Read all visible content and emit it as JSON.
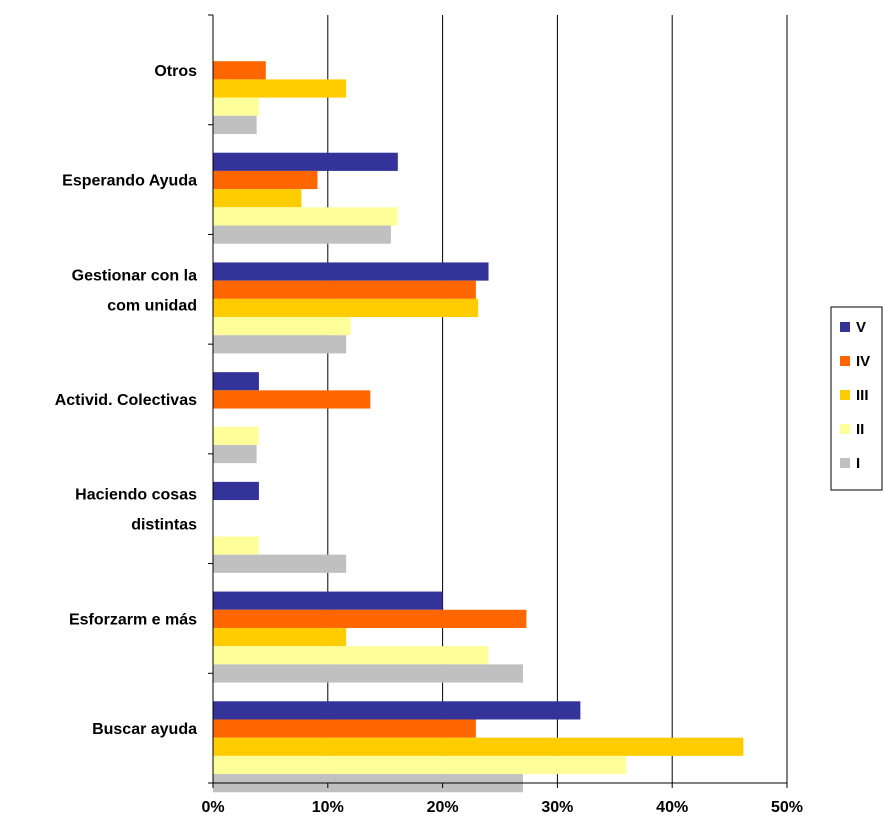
{
  "chart_data": {
    "type": "bar",
    "orientation": "horizontal",
    "categories": [
      "Otros",
      "Esperando Ayuda",
      "Gestionar con la comunidad",
      "Activid. Colectivas",
      "Haciendo cosas distintas",
      "Esforzarme más",
      "Buscar ayuda"
    ],
    "category_label_lines": [
      [
        "Otros"
      ],
      [
        "Esperando Ayuda"
      ],
      [
        "Gestionar con la",
        "com unidad"
      ],
      [
        "Activid. Colectivas"
      ],
      [
        "Haciendo cosas",
        "distintas"
      ],
      [
        "Esforzarm e más"
      ],
      [
        "Buscar ayuda"
      ]
    ],
    "series": [
      {
        "name": "V",
        "color": "#333399",
        "values": [
          0,
          16.1,
          24.0,
          4.0,
          4.0,
          20.0,
          32.0
        ]
      },
      {
        "name": "IV",
        "color": "#FF6600",
        "values": [
          4.6,
          9.1,
          22.9,
          13.7,
          0,
          27.3,
          22.9
        ]
      },
      {
        "name": "III",
        "color": "#FFCC00",
        "values": [
          11.6,
          7.7,
          23.1,
          0,
          0,
          11.6,
          46.2
        ]
      },
      {
        "name": "II",
        "color": "#FFFF99",
        "values": [
          4.0,
          16.1,
          12.0,
          4.0,
          4.0,
          24.0,
          36.0
        ]
      },
      {
        "name": "I",
        "color": "#C0C0C0",
        "values": [
          3.8,
          15.5,
          11.6,
          3.8,
          11.6,
          27.0,
          27.0
        ]
      }
    ],
    "x_ticks": [
      "0%",
      "10%",
      "20%",
      "30%",
      "40%",
      "50%"
    ],
    "xlim": [
      0,
      50
    ],
    "xlabel": "",
    "ylabel": "",
    "title": "",
    "grid": "vertical major gridlines",
    "legend_position": "right",
    "legend_order": [
      "V",
      "IV",
      "III",
      "II",
      "I"
    ]
  }
}
